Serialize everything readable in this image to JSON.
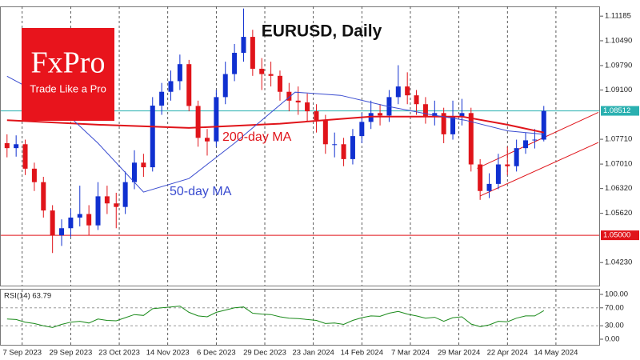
{
  "chart_data": {
    "type": "candlestick",
    "title": "EURUSD, Daily",
    "logo": {
      "name": "FxPro",
      "tagline": "Trade Like a Pro"
    },
    "up_color": "#1030d0",
    "down_color": "#e0141a",
    "x": [
      0,
      3,
      6,
      9,
      12,
      15,
      18,
      21,
      24,
      27,
      30,
      33,
      36,
      39,
      42,
      45,
      48,
      51,
      54,
      57,
      60,
      63,
      66,
      69,
      72,
      75,
      78,
      81,
      84,
      87,
      90,
      93,
      96,
      99,
      102,
      105,
      108,
      111,
      114,
      117,
      120,
      123,
      126,
      129,
      132,
      135,
      138,
      141,
      144,
      147,
      150,
      153,
      156,
      159,
      162,
      165,
      168,
      171,
      174,
      177
    ],
    "open": [
      1.076,
      1.0746,
      1.0757,
      1.0688,
      1.065,
      1.057,
      1.05,
      1.052,
      1.055,
      1.056,
      1.0528,
      1.061,
      1.059,
      1.058,
      1.065,
      1.0705,
      1.0692,
      1.0866,
      1.0905,
      1.0935,
      1.0983,
      1.0865,
      1.0775,
      1.0765,
      1.089,
      1.0955,
      1.1015,
      1.106,
      1.097,
      1.0955,
      1.095,
      1.0905,
      1.088,
      1.0875,
      1.085,
      1.0825,
      1.0757,
      1.0757,
      1.0715,
      1.078,
      1.082,
      1.0845,
      1.0838,
      1.089,
      1.092,
      1.0895,
      1.087,
      1.0836,
      1.0845,
      1.0785,
      1.0836,
      1.0845,
      1.07,
      1.0625,
      1.0645,
      1.07,
      1.0695,
      1.0746,
      1.0768,
      1.077
    ],
    "high": [
      1.0785,
      1.0782,
      1.077,
      1.0705,
      1.0665,
      1.0585,
      1.0545,
      1.0575,
      1.064,
      1.0585,
      1.065,
      1.064,
      1.062,
      1.068,
      1.074,
      1.073,
      1.089,
      1.093,
      1.0965,
      1.101,
      1.0995,
      1.088,
      1.08,
      1.091,
      1.099,
      1.104,
      1.114,
      1.108,
      1.1,
      1.099,
      1.0965,
      1.093,
      1.092,
      1.09,
      1.087,
      1.084,
      1.079,
      1.0775,
      1.08,
      1.0845,
      1.088,
      1.087,
      1.091,
      1.098,
      1.096,
      1.091,
      1.089,
      1.088,
      1.086,
      1.088,
      1.0885,
      1.086,
      1.0715,
      1.0675,
      1.073,
      1.075,
      1.077,
      1.079,
      1.08,
      1.0865
    ],
    "low": [
      1.072,
      1.0722,
      1.067,
      1.0625,
      1.055,
      1.045,
      1.047,
      1.0495,
      1.0525,
      1.05,
      1.0515,
      1.056,
      1.052,
      1.056,
      1.063,
      1.0665,
      1.068,
      1.084,
      1.088,
      1.091,
      1.085,
      1.075,
      1.0725,
      1.075,
      1.087,
      1.0935,
      1.099,
      1.095,
      1.091,
      1.092,
      1.088,
      1.085,
      1.084,
      1.082,
      1.079,
      1.073,
      1.072,
      1.0695,
      1.07,
      1.076,
      1.08,
      1.081,
      1.082,
      1.087,
      1.087,
      1.084,
      1.0815,
      1.081,
      1.076,
      1.077,
      1.081,
      1.068,
      1.06,
      1.0605,
      1.063,
      1.067,
      1.068,
      1.073,
      1.0745,
      1.0765
    ],
    "close": [
      1.0746,
      1.0757,
      1.0688,
      1.065,
      1.057,
      1.05,
      1.052,
      1.055,
      1.056,
      1.0528,
      1.061,
      1.059,
      1.058,
      1.065,
      1.0705,
      1.0692,
      1.0866,
      1.0905,
      1.0935,
      1.0983,
      1.0865,
      1.0775,
      1.0765,
      1.089,
      1.0955,
      1.1015,
      1.106,
      1.097,
      1.0955,
      1.095,
      1.0905,
      1.088,
      1.0875,
      1.085,
      1.0825,
      1.0757,
      1.0757,
      1.0715,
      1.078,
      1.082,
      1.0845,
      1.0838,
      1.089,
      1.092,
      1.0895,
      1.087,
      1.0836,
      1.0845,
      1.0785,
      1.0836,
      1.0845,
      1.07,
      1.0625,
      1.0645,
      1.07,
      1.0695,
      1.0746,
      1.0768,
      1.077,
      1.0851
    ],
    "xlim": [
      -1,
      195
    ],
    "xticks": [
      {
        "value": 5,
        "label": "7 Sep 2023"
      },
      {
        "value": 21,
        "label": "29 Sep 2023"
      },
      {
        "value": 37,
        "label": "23 Oct 2023"
      },
      {
        "value": 53,
        "label": "14 Nov 2023"
      },
      {
        "value": 69,
        "label": "6 Dec 2023"
      },
      {
        "value": 85,
        "label": "29 Dec 2023"
      },
      {
        "value": 101,
        "label": "23 Jan 2024"
      },
      {
        "value": 117,
        "label": "14 Feb 2024"
      },
      {
        "value": 133,
        "label": "7 Mar 2024"
      },
      {
        "value": 149,
        "label": "29 Mar 2024"
      },
      {
        "value": 165,
        "label": "22 Apr 2024"
      },
      {
        "value": 181,
        "label": "14 May 2024"
      }
    ],
    "ylim": [
      1.0358,
      1.1146
    ],
    "yticks": [
      1.11185,
      {
        "value": 1.1049,
        "label": "1.10490"
      },
      {
        "value": 1.0979,
        "label": "1.09790"
      },
      {
        "value": 1.091,
        "label": "1.09100"
      },
      {
        "value": 1.0771,
        "label": "1.07710"
      },
      {
        "value": 1.0701,
        "label": "1.07010"
      },
      {
        "value": 1.0632,
        "label": "1.06320"
      },
      {
        "value": 1.0562,
        "label": "1.05620"
      },
      {
        "value": 1.0423,
        "label": "1.04230"
      }
    ],
    "lines": [
      {
        "name": "200-day MA",
        "color": "#e0141a",
        "x": [
          0,
          30,
          60,
          90,
          120,
          150,
          165,
          177
        ],
        "values": [
          1.0825,
          1.0812,
          1.0803,
          1.0815,
          1.0835,
          1.0835,
          1.0812,
          1.079
        ]
      },
      {
        "name": "50-day MA",
        "color": "#3a4cd0",
        "x": [
          0,
          15,
          30,
          45,
          60,
          75,
          95,
          110,
          125,
          140,
          151,
          165,
          177
        ],
        "values": [
          1.0949,
          1.088,
          1.076,
          1.0622,
          1.066,
          1.076,
          1.0904,
          1.0895,
          1.0865,
          1.084,
          1.0825,
          1.0795,
          1.0785
        ]
      }
    ],
    "trendlines": [
      {
        "color": "#e0141a",
        "x": [
          156,
          195
        ],
        "values": [
          1.0611,
          1.0762
        ]
      },
      {
        "color": "#e0141a",
        "x": [
          155,
          195
        ],
        "values": [
          1.0689,
          1.0847
        ]
      }
    ],
    "levels": [
      {
        "value": 1.08512,
        "color": "#2ab0b0"
      },
      {
        "value": 1.05,
        "label": "1.05000",
        "color": "#e0141a"
      }
    ],
    "rsi": {
      "title": "RSI(14) 63.79",
      "color": "#1a8a1a",
      "values": [
        45,
        44,
        38,
        35,
        30,
        26,
        33,
        38,
        40,
        36,
        45,
        42,
        41,
        48,
        55,
        53,
        68,
        70,
        72,
        74,
        60,
        52,
        50,
        60,
        65,
        70,
        72,
        58,
        56,
        55,
        50,
        47,
        46,
        44,
        42,
        35,
        36,
        33,
        42,
        48,
        52,
        51,
        58,
        62,
        56,
        52,
        47,
        49,
        40,
        48,
        50,
        34,
        28,
        32,
        40,
        39,
        47,
        52,
        52,
        63.79
      ],
      "ylim": [
        -12.5,
        110.7
      ],
      "yticks": [
        {
          "value": 100,
          "label": "100.00"
        },
        {
          "value": 70,
          "label": "70.00"
        },
        {
          "value": 30,
          "label": "30.00"
        },
        {
          "value": 0,
          "label": "0.00"
        }
      ],
      "levels": [
        70,
        30
      ]
    }
  }
}
